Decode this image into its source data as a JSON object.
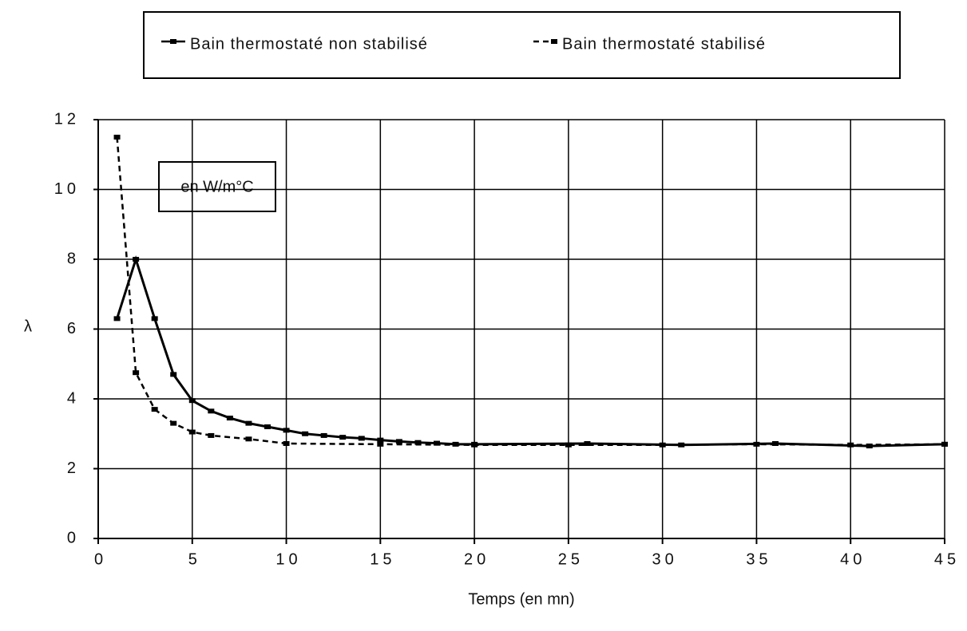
{
  "chart_data": {
    "type": "line",
    "y_label": "λ",
    "x_label": "Temps (en mn)",
    "annotation": "en W/m°C",
    "xlim": [
      0,
      45
    ],
    "xticks": [
      0,
      5,
      10,
      15,
      20,
      25,
      30,
      35,
      40,
      45
    ],
    "ylim": [
      0,
      12
    ],
    "yticks": [
      0,
      2,
      4,
      6,
      8,
      10,
      12
    ],
    "grid": true,
    "legend": "top",
    "series": [
      {
        "name": "Bain thermostaté non stabilisé",
        "color": "#000000",
        "dash": false,
        "x": [
          1,
          2,
          3,
          4,
          5,
          6,
          7,
          8,
          9,
          10,
          11,
          12,
          13,
          14,
          15,
          16,
          17,
          18,
          19,
          20,
          26,
          31,
          36,
          41,
          45
        ],
        "values": [
          6.3,
          8.0,
          6.3,
          4.7,
          3.95,
          3.65,
          3.45,
          3.3,
          3.2,
          3.1,
          3.0,
          2.95,
          2.9,
          2.87,
          2.82,
          2.78,
          2.75,
          2.73,
          2.7,
          2.7,
          2.72,
          2.68,
          2.72,
          2.65,
          2.7
        ]
      },
      {
        "name": "Bain thermostaté stabilisé",
        "color": "#000000",
        "dash": true,
        "x": [
          1,
          2,
          3,
          4,
          5,
          6,
          8,
          10,
          15,
          20,
          25,
          30,
          35,
          40,
          45
        ],
        "values": [
          11.5,
          4.75,
          3.7,
          3.3,
          3.05,
          2.95,
          2.85,
          2.72,
          2.7,
          2.68,
          2.68,
          2.68,
          2.7,
          2.68,
          2.7
        ]
      }
    ]
  }
}
